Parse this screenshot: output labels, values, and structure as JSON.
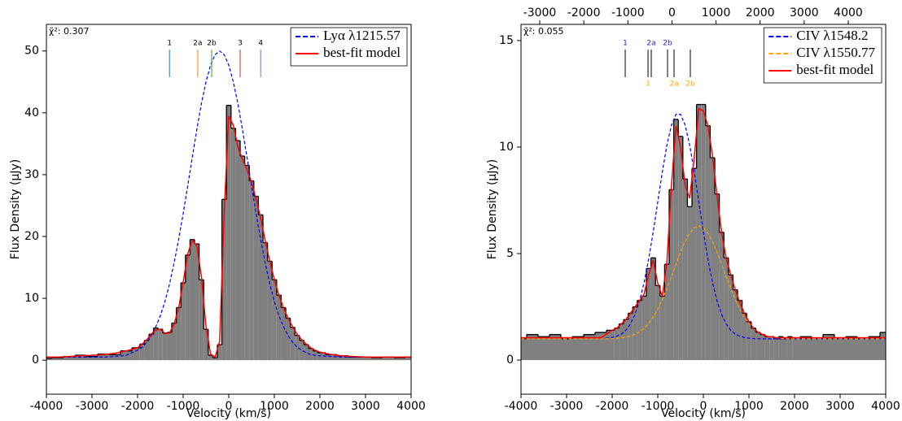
{
  "chart_data": [
    {
      "type": "line",
      "annotation": "χ̃²: 0.307",
      "x_label": "Velocity (km/s)",
      "y_label": "Flux Density (μJy)",
      "xlim": [
        -4000,
        4000
      ],
      "xticks": [
        -4000,
        -3000,
        -2000,
        -1000,
        0,
        1000,
        2000,
        3000,
        4000
      ],
      "ylim": [
        -5.5,
        54.3
      ],
      "yticks": [
        0,
        10,
        20,
        30,
        40,
        50
      ],
      "legend": "upper right",
      "x": [
        -4000,
        -3750,
        -3500,
        -3250,
        -3000,
        -2750,
        -2500,
        -2250,
        -2000,
        -1900,
        -1800,
        -1700,
        -1600,
        -1500,
        -1400,
        -1300,
        -1200,
        -1100,
        -1000,
        -900,
        -800,
        -700,
        -600,
        -500,
        -400,
        -300,
        -200,
        -100,
        0,
        100,
        200,
        300,
        400,
        500,
        600,
        700,
        800,
        900,
        1000,
        1100,
        1200,
        1300,
        1400,
        1500,
        1600,
        1700,
        1800,
        1900,
        2000,
        2250,
        2500,
        2750,
        3000,
        3250,
        3500,
        3750,
        4000
      ],
      "series": [
        {
          "style": "step",
          "color": "#808080",
          "values": [
            0.3,
            0.4,
            0.6,
            0.8,
            0.6,
            1.0,
            0.9,
            1.5,
            2.0,
            2.6,
            3.2,
            4.2,
            5.2,
            5.0,
            4.4,
            4.5,
            6.0,
            8.5,
            12.5,
            17.0,
            19.5,
            18.8,
            13.0,
            5.0,
            0.8,
            0.4,
            2.5,
            26.0,
            41.2,
            37.5,
            35.5,
            33.0,
            31.5,
            29.0,
            26.5,
            23.5,
            19.0,
            16.0,
            13.0,
            10.5,
            8.5,
            6.8,
            5.3,
            4.0,
            3.2,
            2.5,
            1.9,
            1.5,
            1.2,
            0.9,
            0.7,
            0.5,
            0.5,
            0.4,
            0.5,
            0.4,
            0.5
          ]
        },
        {
          "name": "Lyα λ1215.57",
          "style": "dashed",
          "color": "#0000ff",
          "values": [
            0.5,
            0.5,
            0.5,
            0.5,
            0.5,
            0.5,
            0.6,
            0.8,
            1.6,
            2.1,
            2.9,
            4.0,
            5.4,
            7.2,
            9.5,
            12.3,
            15.7,
            19.5,
            23.7,
            28.2,
            32.8,
            37.3,
            41.5,
            45.0,
            47.7,
            49.4,
            50.0,
            49.4,
            47.7,
            45.0,
            41.5,
            37.3,
            32.8,
            28.2,
            23.7,
            19.5,
            15.7,
            12.3,
            9.5,
            7.2,
            5.4,
            4.0,
            2.9,
            2.1,
            1.6,
            1.2,
            0.9,
            0.8,
            0.7,
            0.6,
            0.5,
            0.5,
            0.5,
            0.5,
            0.5,
            0.5,
            0.5
          ]
        },
        {
          "name": "best-fit model",
          "style": "solid",
          "color": "#ff0000",
          "values": [
            0.5,
            0.5,
            0.6,
            0.7,
            0.8,
            0.9,
            1.1,
            1.5,
            2.0,
            2.6,
            3.3,
            4.2,
            4.9,
            5.0,
            4.3,
            4.4,
            5.8,
            8.4,
            12.6,
            17.2,
            19.4,
            18.5,
            13.5,
            5.5,
            1.0,
            0.5,
            3.0,
            24.0,
            39.5,
            38.0,
            34.5,
            32.5,
            30.8,
            28.8,
            26.0,
            23.0,
            19.3,
            16.0,
            13.0,
            10.5,
            8.5,
            6.8,
            5.4,
            4.2,
            3.3,
            2.6,
            2.0,
            1.6,
            1.3,
            0.9,
            0.7,
            0.6,
            0.5,
            0.5,
            0.5,
            0.5,
            0.5
          ]
        }
      ],
      "markers": [
        {
          "label": "1",
          "x": -1300,
          "label_color": "#000000",
          "line_color": "#1f77b4",
          "label_position": "above"
        },
        {
          "label": "2a",
          "x": -680,
          "label_color": "#000000",
          "line_color": "#ff7f0e",
          "label_position": "above"
        },
        {
          "label": "2b",
          "x": -375,
          "label_color": "#000000",
          "line_color": "#2ca02c",
          "label_position": "above"
        },
        {
          "label": "3",
          "x": 250,
          "label_color": "#000000",
          "line_color": "#d62728",
          "label_position": "above"
        },
        {
          "label": "4",
          "x": 700,
          "label_color": "#000000",
          "line_color": "#9467bd",
          "label_position": "above"
        }
      ]
    },
    {
      "type": "line",
      "annotation": "χ̃²: 0.055",
      "x_label": "Velocity (km/s)",
      "y_label": "Flux Density (μJy)",
      "xlim": [
        -4000,
        4000
      ],
      "xticks": [
        -4000,
        -3000,
        -2000,
        -1000,
        0,
        1000,
        2000,
        3000,
        4000
      ],
      "x2lim": [
        -3425,
        4850
      ],
      "x2ticks": [
        -3000,
        -2000,
        -1000,
        0,
        1000,
        2000,
        3000,
        4000
      ],
      "ylim": [
        -1.6,
        15.76
      ],
      "yticks": [
        0,
        5,
        10,
        15
      ],
      "legend": "upper right",
      "x": [
        -4000,
        -3750,
        -3500,
        -3250,
        -3000,
        -2750,
        -2500,
        -2250,
        -2000,
        -1900,
        -1800,
        -1700,
        -1600,
        -1500,
        -1400,
        -1300,
        -1200,
        -1100,
        -1000,
        -900,
        -800,
        -700,
        -600,
        -500,
        -400,
        -300,
        -200,
        -100,
        0,
        100,
        200,
        300,
        400,
        500,
        600,
        700,
        800,
        900,
        1000,
        1100,
        1200,
        1300,
        1400,
        1500,
        1600,
        1700,
        1800,
        1900,
        2000,
        2250,
        2500,
        2750,
        3000,
        3250,
        3500,
        3750,
        4000
      ],
      "series": [
        {
          "style": "step",
          "color": "#808080",
          "values": [
            1.0,
            1.2,
            1.1,
            1.2,
            1.0,
            1.1,
            1.2,
            1.3,
            1.4,
            1.5,
            1.7,
            1.9,
            2.2,
            2.5,
            2.8,
            3.0,
            4.3,
            4.8,
            3.5,
            3.0,
            4.5,
            8.0,
            11.3,
            10.5,
            8.5,
            7.2,
            9.0,
            12.0,
            12.0,
            11.0,
            9.5,
            7.8,
            6.0,
            4.8,
            4.0,
            3.3,
            2.8,
            2.2,
            1.8,
            1.5,
            1.3,
            1.2,
            1.1,
            1.1,
            1.0,
            1.1,
            1.0,
            1.1,
            1.0,
            1.1,
            1.0,
            1.2,
            1.0,
            1.1,
            1.0,
            1.1,
            1.3
          ]
        },
        {
          "name": "CIV λ1548.2",
          "style": "dashed",
          "color": "#0000ff",
          "values": [
            1.0,
            1.0,
            1.0,
            1.0,
            1.0,
            1.0,
            1.0,
            1.0,
            1.06,
            1.12,
            1.22,
            1.4,
            1.7,
            2.14,
            2.78,
            3.64,
            4.74,
            6.02,
            7.43,
            8.84,
            10.09,
            11.03,
            11.54,
            11.54,
            11.03,
            10.09,
            8.84,
            7.43,
            6.02,
            4.74,
            3.64,
            2.78,
            2.14,
            1.7,
            1.4,
            1.22,
            1.12,
            1.06,
            1.03,
            1.01,
            1.0,
            1.0,
            1.0,
            1.0,
            1.0,
            1.0,
            1.0,
            1.0,
            1.0,
            1.0,
            1.0,
            1.0,
            1.0,
            1.0,
            1.0,
            1.0,
            1.0
          ]
        },
        {
          "name": "CIV λ1550.77",
          "style": "dashed",
          "color": "#ffa500",
          "values": [
            1.0,
            1.0,
            1.0,
            1.0,
            1.0,
            1.0,
            1.0,
            1.0,
            1.01,
            1.02,
            1.04,
            1.08,
            1.13,
            1.21,
            1.33,
            1.49,
            1.72,
            2.02,
            2.39,
            2.84,
            3.36,
            3.92,
            4.51,
            5.07,
            5.57,
            5.96,
            6.21,
            6.3,
            6.21,
            5.96,
            5.57,
            5.07,
            4.51,
            3.92,
            3.36,
            2.84,
            2.39,
            2.02,
            1.72,
            1.49,
            1.33,
            1.21,
            1.13,
            1.08,
            1.04,
            1.02,
            1.01,
            1.0,
            1.0,
            1.0,
            1.0,
            1.0,
            1.0,
            1.0,
            1.0,
            1.0,
            1.0
          ]
        },
        {
          "name": "best-fit model",
          "style": "solid",
          "color": "#ff0000",
          "values": [
            1.05,
            1.05,
            1.05,
            1.05,
            1.05,
            1.05,
            1.05,
            1.05,
            1.4,
            1.5,
            1.7,
            1.9,
            2.2,
            2.5,
            2.8,
            3.1,
            4.0,
            4.7,
            3.6,
            3.0,
            4.6,
            8.2,
            11.0,
            10.0,
            8.2,
            7.6,
            9.5,
            11.8,
            11.7,
            11.0,
            9.6,
            7.7,
            6.0,
            4.8,
            4.0,
            3.3,
            2.7,
            2.2,
            1.8,
            1.5,
            1.3,
            1.2,
            1.1,
            1.1,
            1.05,
            1.05,
            1.05,
            1.05,
            1.05,
            1.05,
            1.05,
            1.05,
            1.05,
            1.05,
            1.05,
            1.05,
            1.05
          ]
        }
      ],
      "markers": [
        {
          "label": "1",
          "x": -1714,
          "label_color": "#2222cc",
          "line_color": "#000000",
          "label_position": "above"
        },
        {
          "label": "2a",
          "x": -1143,
          "label_color": "#2222cc",
          "line_color": "#000000",
          "label_position": "above"
        },
        {
          "label": "2b",
          "x": -786,
          "label_color": "#2222cc",
          "line_color": "#000000",
          "label_position": "above"
        },
        {
          "label": "1",
          "x": -1214,
          "label_color": "#ffa500",
          "line_color": "#000000",
          "label_position": "below"
        },
        {
          "label": "2a",
          "x": -643,
          "label_color": "#ffa500",
          "line_color": "#000000",
          "label_position": "below"
        },
        {
          "label": "2b",
          "x": -286,
          "label_color": "#ffa500",
          "line_color": "#000000",
          "label_position": "below"
        }
      ]
    }
  ]
}
